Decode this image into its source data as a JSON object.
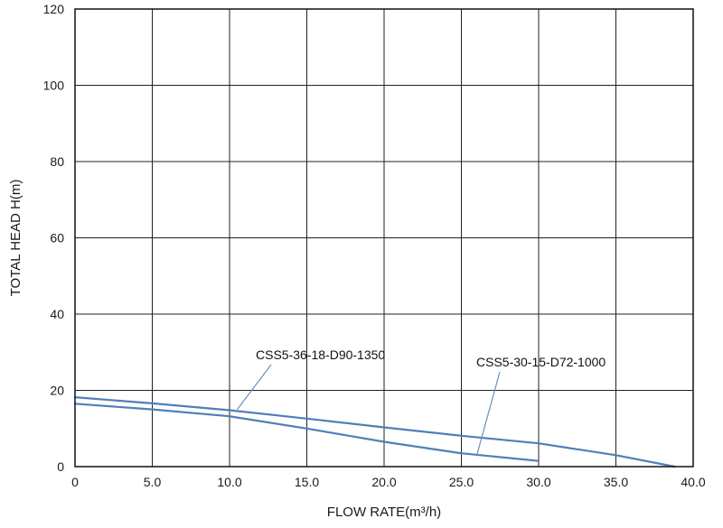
{
  "chart_data": {
    "type": "line",
    "xlabel": "FLOW RATE(m³/h)",
    "ylabel": "TOTAL HEAD H(m)",
    "xlim": [
      0,
      40
    ],
    "ylim": [
      0,
      120
    ],
    "x_ticks": [
      "0",
      "5.0",
      "10.0",
      "15.0",
      "20.0",
      "25.0",
      "30.0",
      "35.0",
      "40.0"
    ],
    "y_ticks": [
      "0",
      "20",
      "40",
      "60",
      "80",
      "100",
      "120"
    ],
    "grid": true,
    "series": [
      {
        "name": "CSS5-36-18-D90-1350",
        "color": "#4f7fb8",
        "x": [
          0,
          5,
          10,
          15,
          20,
          25,
          30,
          35,
          38.8
        ],
        "y": [
          18.2,
          16.6,
          14.8,
          12.6,
          10.3,
          8.1,
          6.1,
          3.0,
          0
        ]
      },
      {
        "name": "CSS5-30-15-D72-1000",
        "color": "#4f7fb8",
        "x": [
          0,
          5,
          10,
          15,
          20,
          25,
          30
        ],
        "y": [
          16.5,
          15.0,
          13.2,
          10.0,
          6.5,
          3.5,
          1.5
        ]
      }
    ],
    "annotations": [
      {
        "text": "CSS5-36-18-D90-1350",
        "series": 0,
        "x": 10.5,
        "y": 15.0
      },
      {
        "text": "CSS5-30-15-D72-1000",
        "series": 1,
        "x": 26.0,
        "y": 3.0
      }
    ]
  }
}
